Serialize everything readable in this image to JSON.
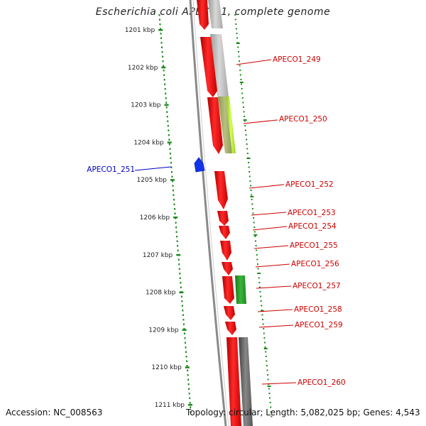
{
  "title": "Escherichia coli APEC O1, complete genome",
  "footer": {
    "accession": "Accession: NC_008563",
    "summary": "Topology: circular; Length: 5,082,025 bp; Genes: 4,543"
  },
  "colors": {
    "ruler": "#1a8a1a",
    "tick": "#1a8a1a",
    "forward": "#ee1111",
    "blue_gene": "#1133ee",
    "green_gene": "#2a9a2a",
    "lime_gene": "#b8f22a",
    "gray_gene": "#bbbbbb",
    "dark_gene": "#666666",
    "label_red": "#cc0000",
    "label_blue": "#0000cc",
    "backbone": "#888888"
  },
  "ruler_labels": [
    "1201 kbp",
    "1202 kbp",
    "1203 kbp",
    "1204 kbp",
    "1205 kbp",
    "1206 kbp",
    "1207 kbp",
    "1208 kbp",
    "1209 kbp",
    "1210 kbp",
    "1211 kbp"
  ],
  "gene_labels": [
    {
      "text": "APECO1_249",
      "strand": "forward"
    },
    {
      "text": "APECO1_250",
      "strand": "forward"
    },
    {
      "text": "APECO1_251",
      "strand": "reverse"
    },
    {
      "text": "APECO1_252",
      "strand": "forward"
    },
    {
      "text": "APECO1_253",
      "strand": "forward"
    },
    {
      "text": "APECO1_254",
      "strand": "forward"
    },
    {
      "text": "APECO1_255",
      "strand": "forward"
    },
    {
      "text": "APECO1_256",
      "strand": "forward"
    },
    {
      "text": "APECO1_257",
      "strand": "forward"
    },
    {
      "text": "APECO1_258",
      "strand": "forward"
    },
    {
      "text": "APECO1_259",
      "strand": "forward"
    },
    {
      "text": "APECO1_260",
      "strand": "forward"
    }
  ]
}
